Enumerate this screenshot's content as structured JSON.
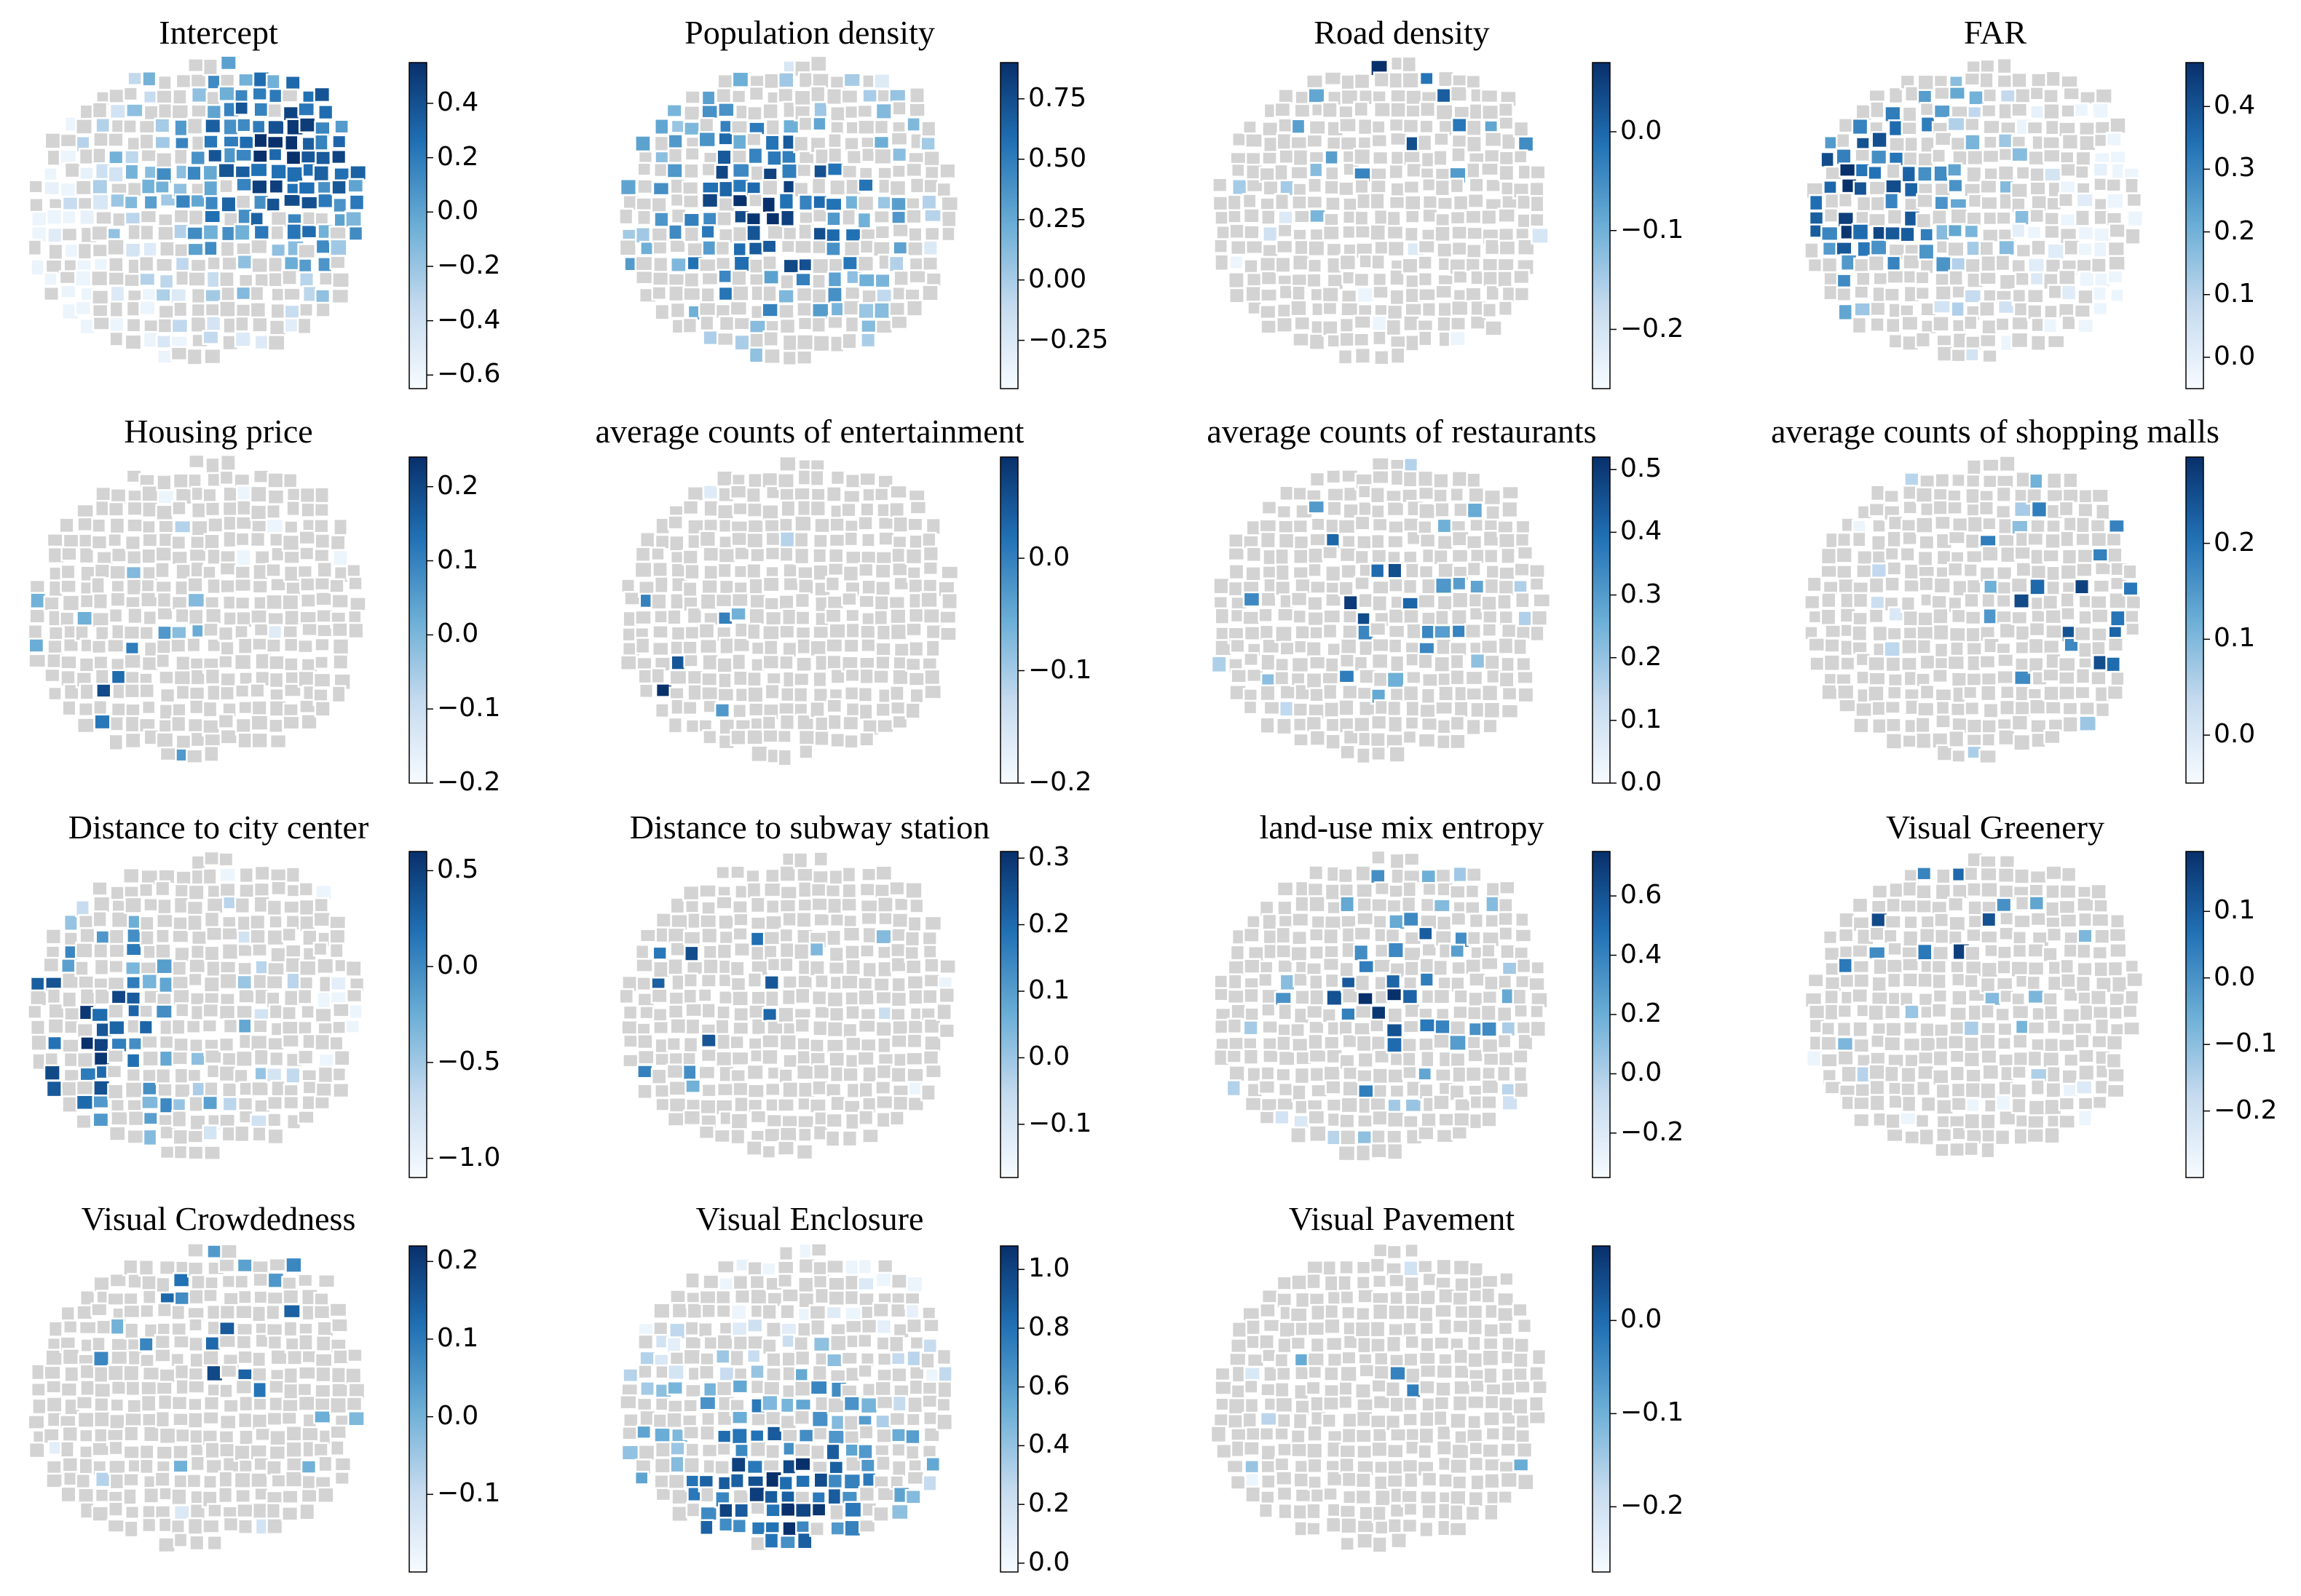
{
  "figure": {
    "description_title": "",
    "colormap": "Blues",
    "colors": {
      "min": "#f7fbff",
      "mid": "#6baed6",
      "max": "#08306b",
      "null": "#d3d3d3",
      "edge": "#ffffff"
    }
  },
  "chart_data": [
    {
      "type": "map",
      "title": "Intercept",
      "range": [
        -0.65,
        0.55
      ],
      "ticks": [
        "0.4",
        "0.2",
        "0.0",
        "−0.2",
        "−0.4",
        "−0.6"
      ],
      "tick_values": [
        0.4,
        0.2,
        0.0,
        -0.2,
        -0.4,
        -0.6
      ],
      "significant_share": 0.85,
      "hot": [
        0.78,
        0.32
      ]
    },
    {
      "type": "map",
      "title": "Population density",
      "range": [
        -0.45,
        0.9
      ],
      "ticks": [
        "0.75",
        "0.50",
        "0.25",
        "0.00",
        "−0.25"
      ],
      "tick_values": [
        0.75,
        0.5,
        0.25,
        0.0,
        -0.25
      ],
      "significant_share": 0.45,
      "hot": [
        0.45,
        0.5
      ]
    },
    {
      "type": "map",
      "title": "Road density",
      "range": [
        -0.26,
        0.07
      ],
      "ticks": [
        "0.0",
        "−0.1",
        "−0.2"
      ],
      "tick_values": [
        0.0,
        -0.1,
        -0.2
      ],
      "significant_share": 0.07,
      "hot": [
        0.6,
        0.1
      ]
    },
    {
      "type": "map",
      "title": "FAR",
      "range": [
        -0.05,
        0.47
      ],
      "ticks": [
        "0.4",
        "0.3",
        "0.2",
        "0.1",
        "0.0"
      ],
      "tick_values": [
        0.4,
        0.3,
        0.2,
        0.1,
        0.0
      ],
      "significant_share": 0.5,
      "hot": [
        0.15,
        0.45
      ]
    },
    {
      "type": "map",
      "title": "Housing price",
      "range": [
        -0.2,
        0.24
      ],
      "ticks": [
        "0.2",
        "0.1",
        "0.0",
        "−0.1",
        "−0.2"
      ],
      "tick_values": [
        0.2,
        0.1,
        0.0,
        -0.1,
        -0.2
      ],
      "significant_share": 0.1,
      "hot": [
        0.25,
        0.8
      ]
    },
    {
      "type": "map",
      "title": "average counts of entertainment",
      "range": [
        -0.2,
        0.09
      ],
      "ticks": [
        "0.0",
        "−0.1",
        "−0.2"
      ],
      "tick_values": [
        0.0,
        -0.1,
        -0.2
      ],
      "significant_share": 0.04,
      "hot": [
        0.15,
        0.75
      ]
    },
    {
      "type": "map",
      "title": "average counts of restaurants",
      "range": [
        0.0,
        0.52
      ],
      "ticks": [
        "0.5",
        "0.4",
        "0.3",
        "0.2",
        "0.1",
        "0.0"
      ],
      "tick_values": [
        0.5,
        0.4,
        0.3,
        0.2,
        0.1,
        0.0
      ],
      "significant_share": 0.1,
      "hot": [
        0.45,
        0.45
      ]
    },
    {
      "type": "map",
      "title": "average counts of shopping malls",
      "range": [
        -0.05,
        0.29
      ],
      "ticks": [
        "0.2",
        "0.1",
        "0.0"
      ],
      "tick_values": [
        0.2,
        0.1,
        0.0
      ],
      "significant_share": 0.12,
      "hot": [
        0.8,
        0.5
      ]
    },
    {
      "type": "map",
      "title": "Distance to city center",
      "range": [
        -1.1,
        0.6
      ],
      "ticks": [
        "0.5",
        "0.0",
        "−0.5",
        "−1.0"
      ],
      "tick_values": [
        0.5,
        0.0,
        -0.5,
        -1.0
      ],
      "significant_share": 0.35,
      "hot": [
        0.2,
        0.6
      ]
    },
    {
      "type": "map",
      "title": "Distance to subway station",
      "range": [
        -0.18,
        0.31
      ],
      "ticks": [
        "0.3",
        "0.2",
        "0.1",
        "0.0",
        "−0.1"
      ],
      "tick_values": [
        0.3,
        0.2,
        0.1,
        0.0,
        -0.1
      ],
      "significant_share": 0.06,
      "hot": [
        0.3,
        0.45
      ]
    },
    {
      "type": "map",
      "title": "land-use mix entropy",
      "range": [
        -0.35,
        0.75
      ],
      "ticks": [
        "0.6",
        "0.4",
        "0.2",
        "0.0",
        "−0.2"
      ],
      "tick_values": [
        0.6,
        0.4,
        0.2,
        0.0,
        -0.2
      ],
      "significant_share": 0.2,
      "hot": [
        0.55,
        0.45
      ]
    },
    {
      "type": "map",
      "title": "Visual Greenery",
      "range": [
        -0.3,
        0.19
      ],
      "ticks": [
        "0.1",
        "0.0",
        "−0.1",
        "−0.2"
      ],
      "tick_values": [
        0.1,
        0.0,
        -0.1,
        -0.2
      ],
      "significant_share": 0.12,
      "hot": [
        0.4,
        0.2
      ]
    },
    {
      "type": "map",
      "title": "Visual Crowdedness",
      "range": [
        -0.2,
        0.22
      ],
      "ticks": [
        "0.2",
        "0.1",
        "0.0",
        "−0.1"
      ],
      "tick_values": [
        0.2,
        0.1,
        0.0,
        -0.1
      ],
      "significant_share": 0.1,
      "hot": [
        0.6,
        0.3
      ]
    },
    {
      "type": "map",
      "title": "Visual  Enclosure",
      "range": [
        -0.03,
        1.08
      ],
      "ticks": [
        "1.0",
        "0.8",
        "0.6",
        "0.4",
        "0.2",
        "0.0"
      ],
      "tick_values": [
        1.0,
        0.8,
        0.6,
        0.4,
        0.2,
        0.0
      ],
      "significant_share": 0.55,
      "hot": [
        0.5,
        0.82
      ]
    },
    {
      "type": "map",
      "title": "Visual Pavement",
      "range": [
        -0.27,
        0.08
      ],
      "ticks": [
        "0.0",
        "−0.1",
        "−0.2"
      ],
      "tick_values": [
        0.0,
        -0.1,
        -0.2
      ],
      "significant_share": 0.04,
      "hot": [
        0.7,
        0.55
      ]
    }
  ]
}
